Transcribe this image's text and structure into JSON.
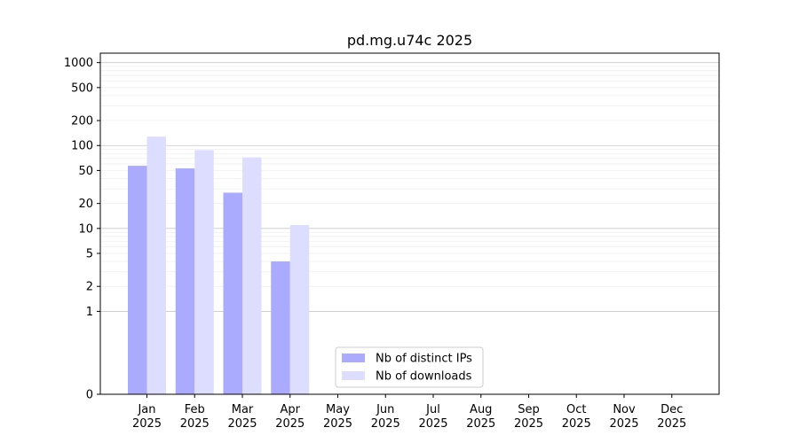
{
  "chart_data": {
    "type": "bar",
    "title": "pd.mg.u74c 2025",
    "xlabel": "",
    "ylabel": "",
    "y_scale": "symlog",
    "ylim": [
      0,
      1300
    ],
    "y_ticks": [
      0,
      1,
      2,
      5,
      10,
      20,
      50,
      100,
      200,
      500,
      1000
    ],
    "grid": "horizontal",
    "legend_position": "bottom-center",
    "categories": [
      [
        "Jan",
        "2025"
      ],
      [
        "Feb",
        "2025"
      ],
      [
        "Mar",
        "2025"
      ],
      [
        "Apr",
        "2025"
      ],
      [
        "May",
        "2025"
      ],
      [
        "Jun",
        "2025"
      ],
      [
        "Jul",
        "2025"
      ],
      [
        "Aug",
        "2025"
      ],
      [
        "Sep",
        "2025"
      ],
      [
        "Oct",
        "2025"
      ],
      [
        "Nov",
        "2025"
      ],
      [
        "Dec",
        "2025"
      ]
    ],
    "series": [
      {
        "name": "Nb of distinct IPs",
        "color": "#aaaaff",
        "values": [
          57,
          53,
          27,
          4,
          0,
          0,
          0,
          0,
          0,
          0,
          0,
          0
        ]
      },
      {
        "name": "Nb of downloads",
        "color": "#ddddff",
        "values": [
          128,
          88,
          72,
          11,
          0,
          0,
          0,
          0,
          0,
          0,
          0,
          0
        ]
      }
    ]
  }
}
